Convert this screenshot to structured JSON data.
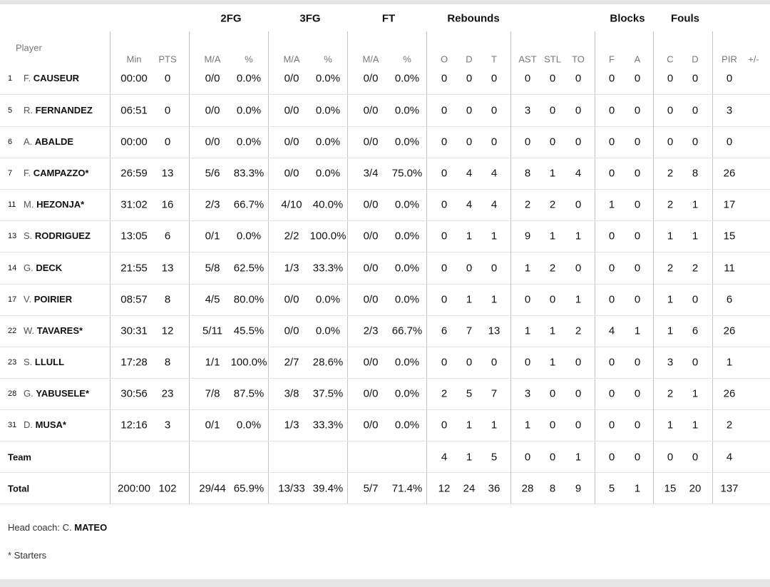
{
  "headers": {
    "groups": [
      "2FG",
      "3FG",
      "FT",
      "Rebounds",
      "Blocks",
      "Fouls"
    ],
    "player_label": "Player",
    "sub": [
      "Min",
      "PTS",
      "M/A",
      "%",
      "M/A",
      "%",
      "M/A",
      "%",
      "O",
      "D",
      "T",
      "AST",
      "STL",
      "TO",
      "F",
      "A",
      "C",
      "D",
      "PIR",
      "+/-"
    ]
  },
  "players": [
    {
      "num": "1",
      "first": "F.",
      "last": "CAUSEUR",
      "starter": false,
      "stats": [
        "00:00",
        "0",
        "0/0",
        "0.0%",
        "0/0",
        "0.0%",
        "0/0",
        "0.0%",
        "0",
        "0",
        "0",
        "0",
        "0",
        "0",
        "0",
        "0",
        "0",
        "0",
        "0",
        ""
      ]
    },
    {
      "num": "5",
      "first": "R.",
      "last": "FERNANDEZ",
      "starter": false,
      "stats": [
        "06:51",
        "0",
        "0/0",
        "0.0%",
        "0/0",
        "0.0%",
        "0/0",
        "0.0%",
        "0",
        "0",
        "0",
        "3",
        "0",
        "0",
        "0",
        "0",
        "0",
        "0",
        "3",
        ""
      ]
    },
    {
      "num": "6",
      "first": "A.",
      "last": "ABALDE",
      "starter": false,
      "stats": [
        "00:00",
        "0",
        "0/0",
        "0.0%",
        "0/0",
        "0.0%",
        "0/0",
        "0.0%",
        "0",
        "0",
        "0",
        "0",
        "0",
        "0",
        "0",
        "0",
        "0",
        "0",
        "0",
        ""
      ]
    },
    {
      "num": "7",
      "first": "F.",
      "last": "CAMPAZZO",
      "starter": true,
      "stats": [
        "26:59",
        "13",
        "5/6",
        "83.3%",
        "0/0",
        "0.0%",
        "3/4",
        "75.0%",
        "0",
        "4",
        "4",
        "8",
        "1",
        "4",
        "0",
        "0",
        "2",
        "8",
        "26",
        ""
      ]
    },
    {
      "num": "11",
      "first": "M.",
      "last": "HEZONJA",
      "starter": true,
      "stats": [
        "31:02",
        "16",
        "2/3",
        "66.7%",
        "4/10",
        "40.0%",
        "0/0",
        "0.0%",
        "0",
        "4",
        "4",
        "2",
        "2",
        "0",
        "1",
        "0",
        "2",
        "1",
        "17",
        ""
      ]
    },
    {
      "num": "13",
      "first": "S.",
      "last": "RODRIGUEZ",
      "starter": false,
      "stats": [
        "13:05",
        "6",
        "0/1",
        "0.0%",
        "2/2",
        "100.0%",
        "0/0",
        "0.0%",
        "0",
        "1",
        "1",
        "9",
        "1",
        "1",
        "0",
        "0",
        "1",
        "1",
        "15",
        ""
      ]
    },
    {
      "num": "14",
      "first": "G.",
      "last": "DECK",
      "starter": false,
      "stats": [
        "21:55",
        "13",
        "5/8",
        "62.5%",
        "1/3",
        "33.3%",
        "0/0",
        "0.0%",
        "0",
        "0",
        "0",
        "1",
        "2",
        "0",
        "0",
        "0",
        "2",
        "2",
        "11",
        ""
      ]
    },
    {
      "num": "17",
      "first": "V.",
      "last": "POIRIER",
      "starter": false,
      "stats": [
        "08:57",
        "8",
        "4/5",
        "80.0%",
        "0/0",
        "0.0%",
        "0/0",
        "0.0%",
        "0",
        "1",
        "1",
        "0",
        "0",
        "1",
        "0",
        "0",
        "1",
        "0",
        "6",
        ""
      ]
    },
    {
      "num": "22",
      "first": "W.",
      "last": "TAVARES",
      "starter": true,
      "stats": [
        "30:31",
        "12",
        "5/11",
        "45.5%",
        "0/0",
        "0.0%",
        "2/3",
        "66.7%",
        "6",
        "7",
        "13",
        "1",
        "1",
        "2",
        "4",
        "1",
        "1",
        "6",
        "26",
        ""
      ]
    },
    {
      "num": "23",
      "first": "S.",
      "last": "LLULL",
      "starter": false,
      "stats": [
        "17:28",
        "8",
        "1/1",
        "100.0%",
        "2/7",
        "28.6%",
        "0/0",
        "0.0%",
        "0",
        "0",
        "0",
        "0",
        "1",
        "0",
        "0",
        "0",
        "3",
        "0",
        "1",
        ""
      ]
    },
    {
      "num": "28",
      "first": "G.",
      "last": "YABUSELE",
      "starter": true,
      "stats": [
        "30:56",
        "23",
        "7/8",
        "87.5%",
        "3/8",
        "37.5%",
        "0/0",
        "0.0%",
        "2",
        "5",
        "7",
        "3",
        "0",
        "0",
        "0",
        "0",
        "2",
        "1",
        "26",
        ""
      ]
    },
    {
      "num": "31",
      "first": "D.",
      "last": "MUSA",
      "starter": true,
      "stats": [
        "12:16",
        "3",
        "0/1",
        "0.0%",
        "1/3",
        "33.3%",
        "0/0",
        "0.0%",
        "0",
        "1",
        "1",
        "1",
        "0",
        "0",
        "0",
        "0",
        "1",
        "1",
        "2",
        ""
      ]
    }
  ],
  "team": {
    "label": "Team",
    "stats": [
      "",
      "",
      "",
      "",
      "",
      "",
      "",
      "",
      "4",
      "1",
      "5",
      "0",
      "0",
      "1",
      "0",
      "0",
      "0",
      "0",
      "4",
      ""
    ]
  },
  "total": {
    "label": "Total",
    "stats": [
      "200:00",
      "102",
      "29/44",
      "65.9%",
      "13/33",
      "39.4%",
      "5/7",
      "71.4%",
      "12",
      "24",
      "36",
      "28",
      "8",
      "9",
      "5",
      "1",
      "15",
      "20",
      "137",
      ""
    ]
  },
  "footer": {
    "coach_prefix": "Head coach: C.",
    "coach_last": "MATEO",
    "starters_note": "* Starters"
  }
}
